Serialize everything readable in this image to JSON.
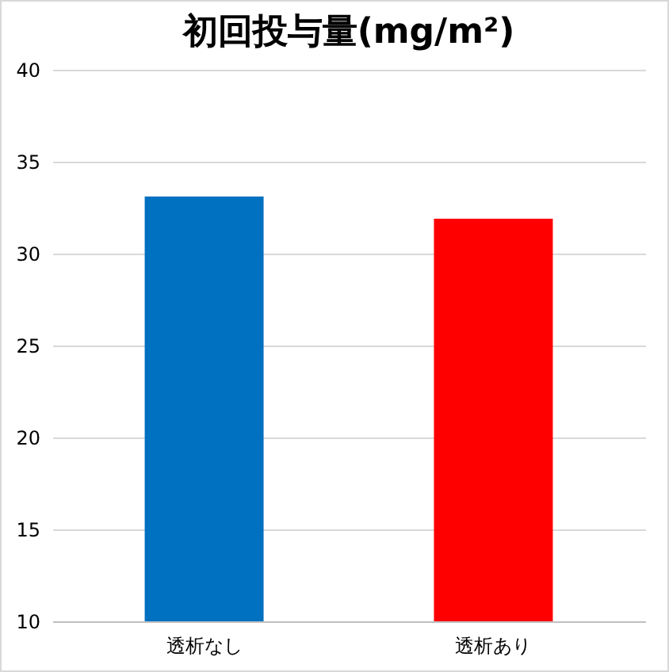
{
  "chart_data": {
    "type": "bar",
    "title": "初回投与量(mg/m²)",
    "categories": [
      "透析なし",
      "透析あり"
    ],
    "values": [
      33.1,
      31.9
    ],
    "colors": [
      "#0070c0",
      "#ff0000"
    ],
    "ylim": [
      10,
      40
    ],
    "yticks": [
      10,
      15,
      20,
      25,
      30,
      35,
      40
    ],
    "grid": "y"
  }
}
